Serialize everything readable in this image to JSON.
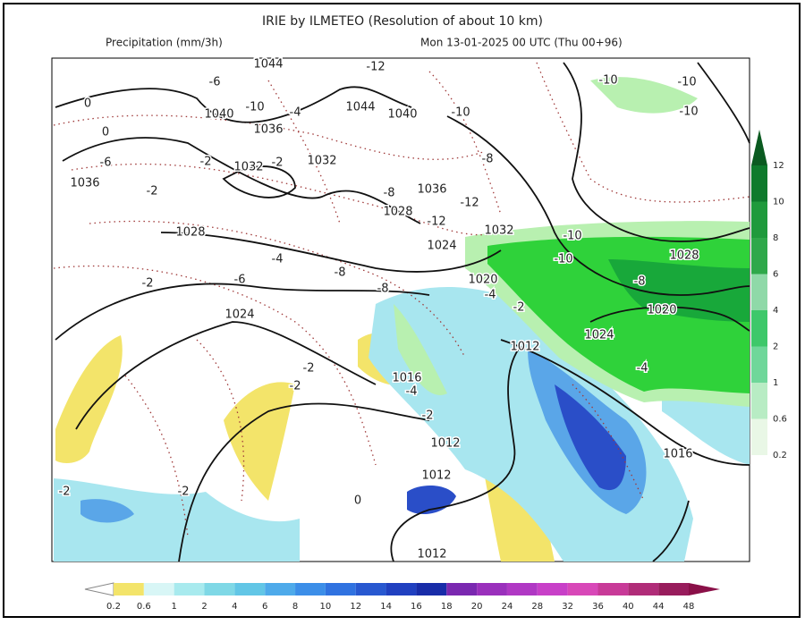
{
  "header": {
    "title": "IRIE by ILMETEO (Resolution of about 10 km)",
    "left": "Precipitation (mm/3h)",
    "right": "Mon 13-01-2025 00 UTC (Thu 00+96)"
  },
  "right_scale": {
    "labels": [
      "12",
      "10",
      "8",
      "6",
      "4",
      "2",
      "1",
      "0.6",
      "0.2"
    ]
  },
  "bottom_scale": {
    "labels": [
      "0.2",
      "0.6",
      "1",
      "2",
      "4",
      "6",
      "8",
      "10",
      "12",
      "14",
      "16",
      "18",
      "20",
      "24",
      "28",
      "32",
      "36",
      "40",
      "44",
      "48"
    ]
  },
  "map_labels": [
    "1044",
    "-12",
    "-6",
    "0",
    "1040",
    "-10",
    "-4",
    "1044",
    "1040",
    "-10",
    "-10",
    "-10",
    "-10",
    "1036",
    "0",
    "-6",
    "-2",
    "1032",
    "-2",
    "1032",
    "-8",
    "-8",
    "1036",
    "-12",
    "1036",
    "-2",
    "1028",
    "-12",
    "1032",
    "1028",
    "-10",
    "1024",
    "1028",
    "-4",
    "-10",
    "-2",
    "-6",
    "-8",
    "-8",
    "1020",
    "-8",
    "-4",
    "-2",
    "1024",
    "1020",
    "1024",
    "1012",
    "-2",
    "-4",
    "1016",
    "-4",
    "-2",
    "-2",
    "1012",
    "1016",
    "1012",
    "-2",
    "-2",
    "0",
    "1012"
  ]
}
